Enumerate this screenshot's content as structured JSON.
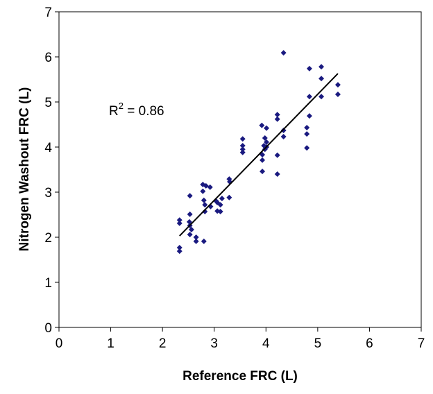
{
  "chart_data": {
    "type": "scatter",
    "xlabel": "Reference FRC (L)",
    "ylabel": "Nitrogen Washout FRC (L)",
    "annotation": {
      "base": "R",
      "sup": "2",
      "rest": " = 0.86"
    },
    "xlim": [
      0,
      7
    ],
    "ylim": [
      0,
      7
    ],
    "xticks": [
      0,
      1,
      2,
      3,
      4,
      5,
      6,
      7
    ],
    "yticks": [
      0,
      1,
      2,
      3,
      4,
      5,
      6,
      7
    ],
    "series": [
      {
        "color": "#1a1a80",
        "x": [
          2.33,
          2.33,
          2.33,
          2.33,
          2.53,
          2.53,
          2.53,
          2.53,
          2.56,
          2.52,
          2.65,
          2.65,
          2.8,
          2.78,
          2.78,
          2.8,
          2.82,
          2.82,
          2.84,
          2.92,
          2.93,
          3.04,
          3.06,
          3.06,
          3.12,
          3.12,
          3.15,
          3.29,
          3.29,
          3.3,
          3.55,
          3.55,
          3.55,
          3.55,
          3.92,
          3.93,
          3.93,
          3.93,
          3.96,
          3.98,
          4.01,
          4.01,
          4.01,
          3.98,
          4.22,
          4.22,
          4.22,
          4.22,
          4.34,
          4.34,
          4.34,
          4.79,
          4.79,
          4.79,
          4.84,
          4.84,
          4.84,
          5.07,
          5.07,
          5.07,
          5.39,
          5.39
        ],
        "values": [
          1.69,
          1.77,
          2.38,
          2.31,
          2.06,
          2.26,
          2.51,
          2.92,
          2.17,
          2.34,
          2.0,
          1.91,
          1.91,
          3.17,
          3.02,
          2.82,
          2.72,
          2.57,
          3.14,
          3.11,
          2.68,
          2.8,
          2.58,
          2.77,
          2.57,
          2.72,
          2.86,
          2.88,
          3.29,
          3.23,
          4.18,
          4.03,
          3.88,
          3.95,
          4.48,
          3.71,
          3.46,
          3.83,
          4.03,
          4.2,
          4.11,
          4.0,
          4.42,
          3.95,
          3.4,
          3.82,
          4.72,
          4.62,
          4.23,
          4.37,
          6.09,
          3.98,
          4.29,
          4.43,
          4.69,
          5.12,
          5.74,
          5.12,
          5.52,
          5.78,
          5.38,
          5.17
        ]
      }
    ],
    "trendline": {
      "color": "#000000",
      "x": [
        2.33,
        5.39
      ],
      "values": [
        2.03,
        5.63
      ]
    }
  }
}
